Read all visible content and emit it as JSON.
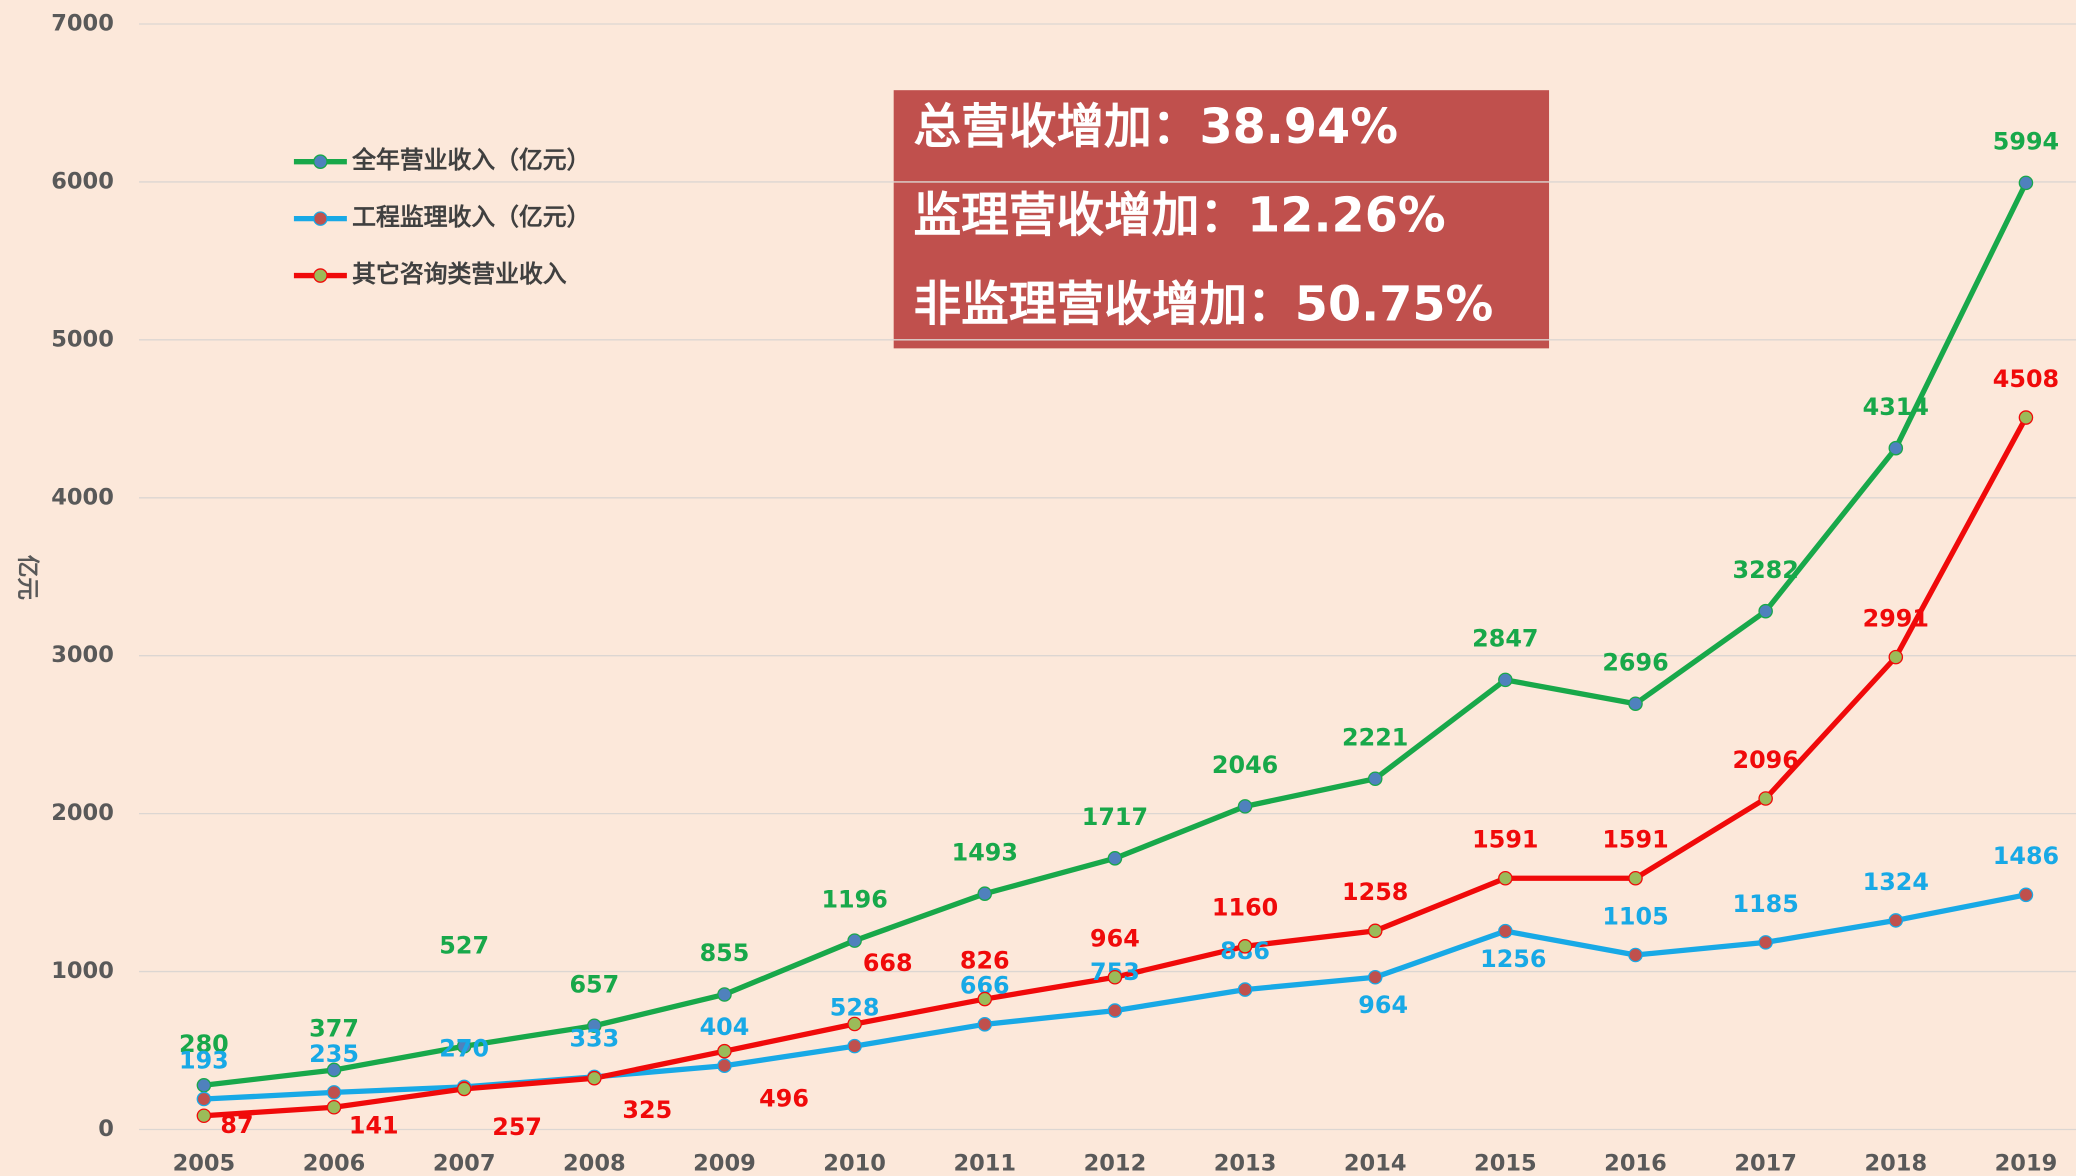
{
  "chart_data": {
    "type": "line",
    "y_label": "亿元",
    "x": [
      "2005",
      "2006",
      "2007",
      "2008",
      "2009",
      "2010",
      "2011",
      "2012",
      "2013",
      "2014",
      "2015",
      "2016",
      "2017",
      "2018",
      "2019"
    ],
    "ylim": [
      0,
      7000
    ],
    "yticks": [
      0,
      1000,
      2000,
      3000,
      4000,
      5000,
      6000,
      7000
    ],
    "grid": true,
    "legend": "upper left",
    "series": [
      {
        "name": "全年营业收入（亿元）",
        "color": "#18a84a",
        "marker_color": "#4f81bd",
        "values": [
          280,
          377,
          527,
          657,
          855,
          1196,
          1493,
          1717,
          2046,
          2221,
          2847,
          2696,
          3282,
          4314,
          5994
        ]
      },
      {
        "name": "工程监理收入（亿元）",
        "color": "#18a9e6",
        "marker_color": "#c0504d",
        "values": [
          193,
          235,
          270,
          333,
          404,
          528,
          666,
          753,
          886,
          964,
          1256,
          1105,
          1185,
          1324,
          1486
        ]
      },
      {
        "name": "其它咨询类营业收入",
        "color": "#f00a0a",
        "marker_color": "#9bbb59",
        "values": [
          87,
          141,
          257,
          325,
          496,
          668,
          826,
          964,
          1160,
          1258,
          1591,
          1591,
          2096,
          2991,
          4508
        ],
        "value_labels": [
          "87",
          "141",
          "257",
          "325",
          "496",
          "668",
          "826",
          "964",
          "1160",
          "1258",
          "1591",
          "1591",
          "2096",
          "2991",
          "4508"
        ]
      }
    ],
    "annotations": [
      "总营收增加：38.94%",
      "监理营收增加：12.26%",
      "非监理营收增加：50.75%"
    ]
  }
}
